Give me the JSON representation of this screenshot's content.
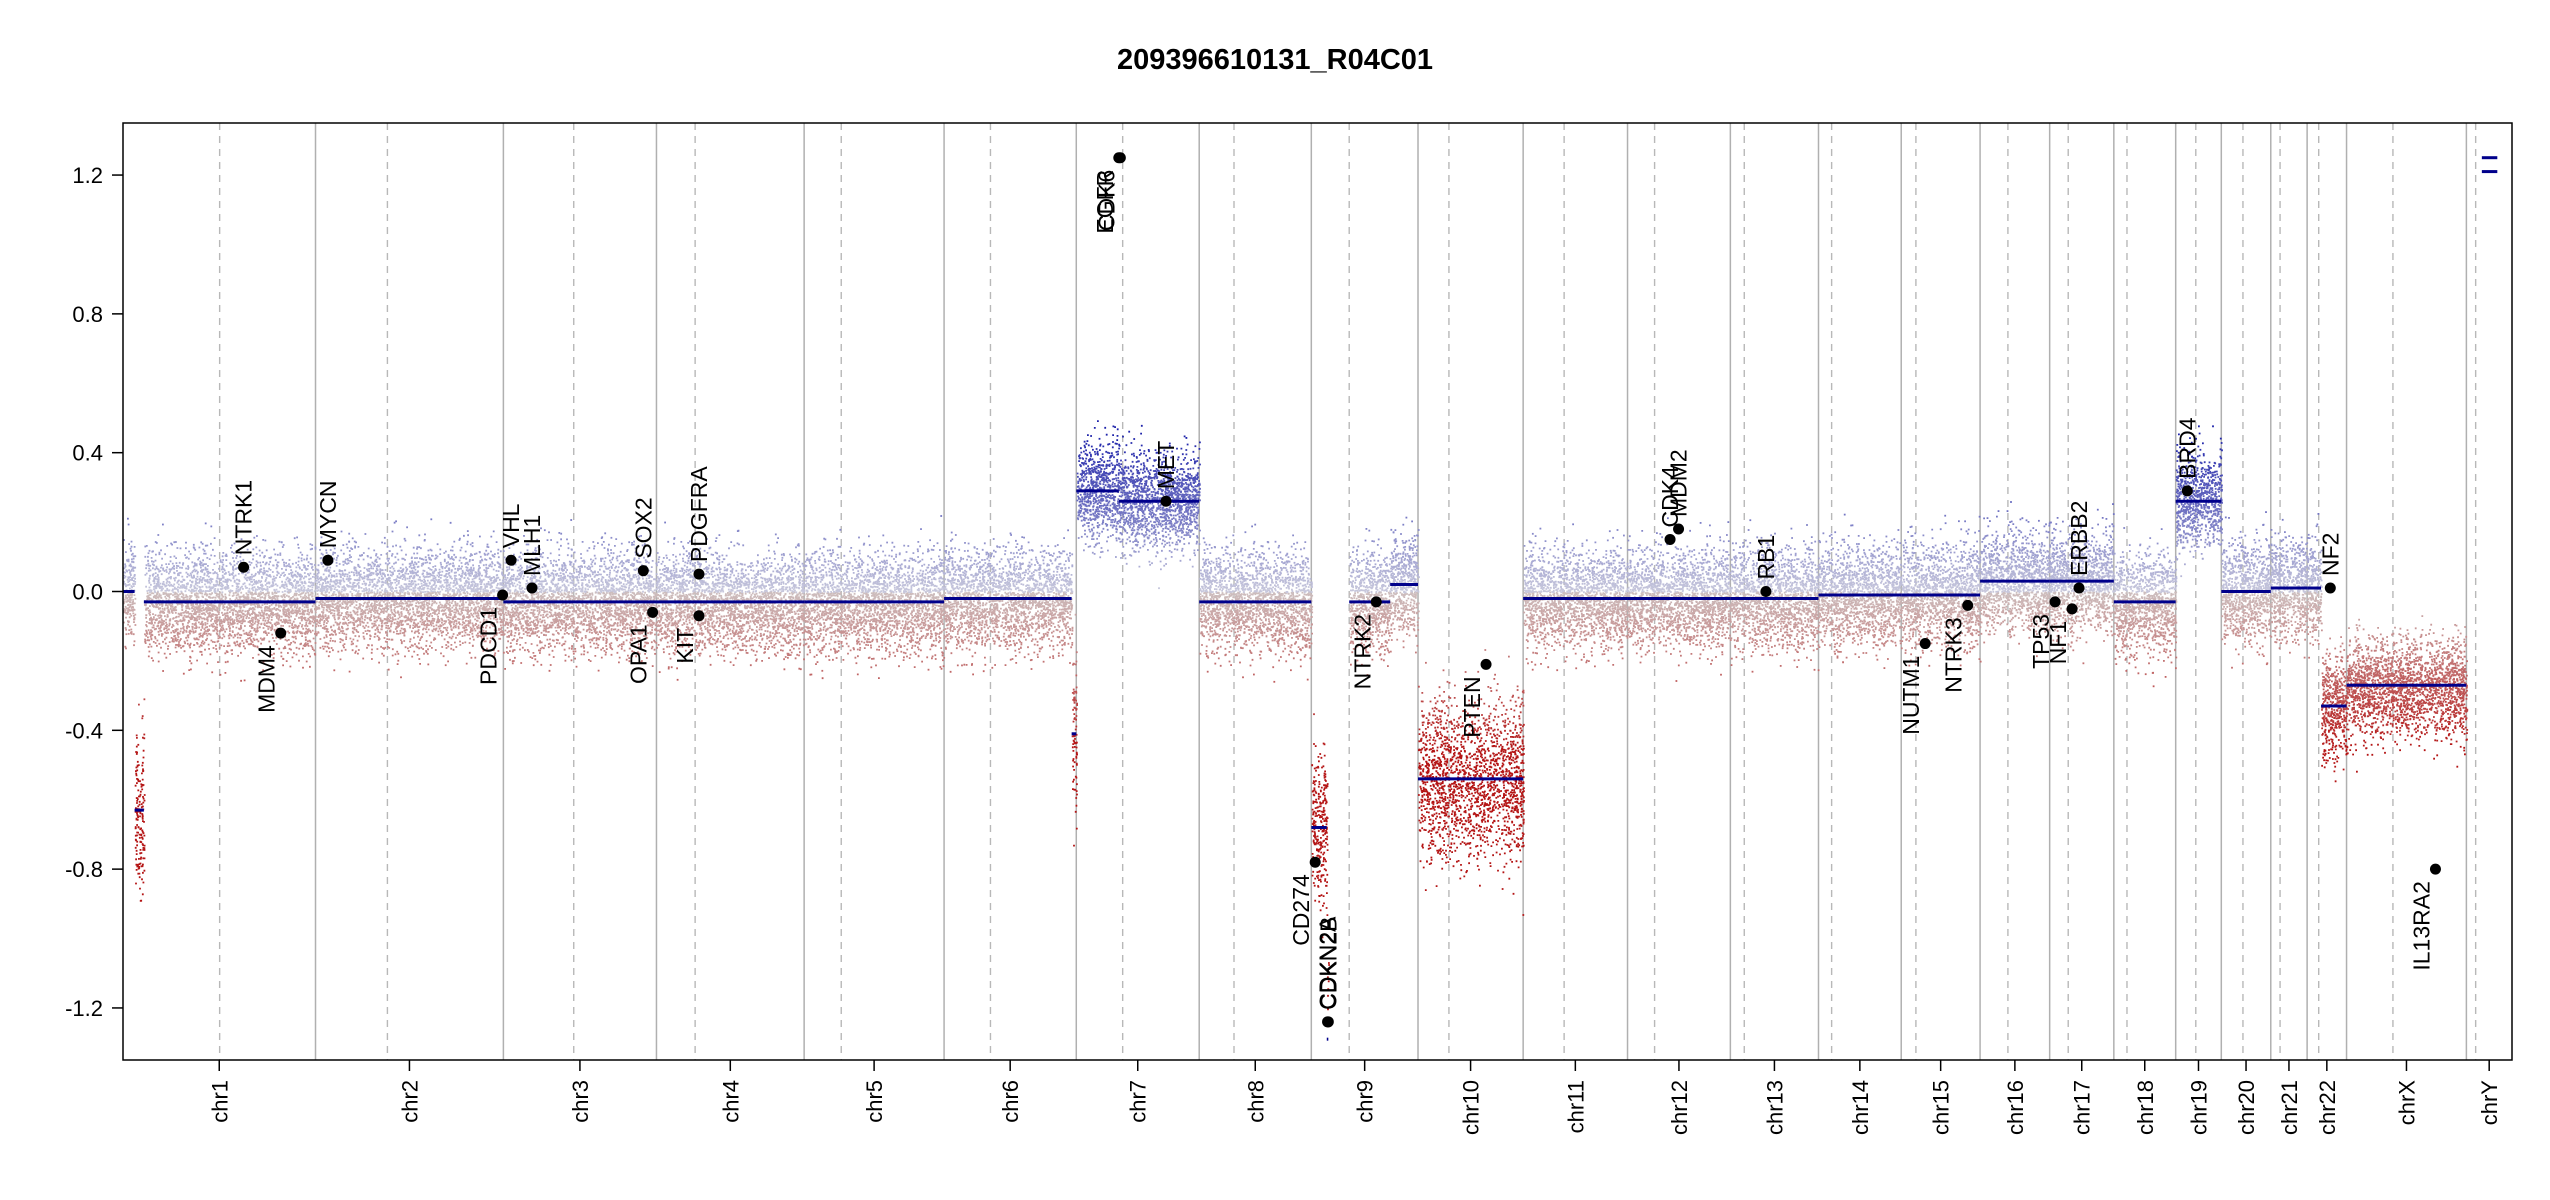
{
  "chart_data": {
    "type": "scatter",
    "title": "209396610131_R04C01",
    "xlabel": "",
    "ylabel": "",
    "ylim": [
      -1.35,
      1.35
    ],
    "y_ticks": [
      -1.2,
      -0.8,
      -0.4,
      0.0,
      0.4,
      0.8,
      1.2
    ],
    "y_tick_labels": [
      "-1.2",
      "-0.8",
      "-0.4",
      "0.0",
      "0.4",
      "0.8",
      "1.2"
    ],
    "grid": "chromosome boundaries (solid) and centromeres (dashed)",
    "colors": {
      "gain": "#1e22aa",
      "loss": "#b31b1b",
      "segment": "#00008b",
      "gene": "#000000"
    },
    "chromosomes": [
      {
        "name": "chr1",
        "label": "chr1",
        "len": 249,
        "cent": 125
      },
      {
        "name": "chr2",
        "label": "chr2",
        "len": 243,
        "cent": 93
      },
      {
        "name": "chr3",
        "label": "chr3",
        "len": 198,
        "cent": 91
      },
      {
        "name": "chr4",
        "label": "chr4",
        "len": 191,
        "cent": 50
      },
      {
        "name": "chr5",
        "label": "chr5",
        "len": 181,
        "cent": 48
      },
      {
        "name": "chr6",
        "label": "chr6",
        "len": 171,
        "cent": 60
      },
      {
        "name": "chr7",
        "label": "chr7",
        "len": 159,
        "cent": 60
      },
      {
        "name": "chr8",
        "label": "chr8",
        "len": 145,
        "cent": 45
      },
      {
        "name": "chr9",
        "label": "chr9",
        "len": 138,
        "cent": 49
      },
      {
        "name": "chr10",
        "label": "chr10",
        "len": 136,
        "cent": 40
      },
      {
        "name": "chr11",
        "label": "chr11",
        "len": 135,
        "cent": 53
      },
      {
        "name": "chr12",
        "label": "chr12",
        "len": 133,
        "cent": 35
      },
      {
        "name": "chr13",
        "label": "chr13",
        "len": 114,
        "cent": 18
      },
      {
        "name": "chr14",
        "label": "chr14",
        "len": 107,
        "cent": 17
      },
      {
        "name": "chr15",
        "label": "chr15",
        "len": 102,
        "cent": 19
      },
      {
        "name": "chr16",
        "label": "chr16",
        "len": 90,
        "cent": 36
      },
      {
        "name": "chr17",
        "label": "chr17",
        "len": 83,
        "cent": 24
      },
      {
        "name": "chr18",
        "label": "chr18",
        "len": 80,
        "cent": 17
      },
      {
        "name": "chr19",
        "label": "chr19",
        "len": 59,
        "cent": 26
      },
      {
        "name": "chr20",
        "label": "chr20",
        "len": 64,
        "cent": 28
      },
      {
        "name": "chr21",
        "label": "chr21",
        "len": 47,
        "cent": 12
      },
      {
        "name": "chr22",
        "label": "chr22",
        "len": 51,
        "cent": 15
      },
      {
        "name": "chrX",
        "label": "chrX",
        "len": 155,
        "cent": 60
      },
      {
        "name": "chrY",
        "label": "chrY",
        "len": 59,
        "cent": 12
      }
    ],
    "segments": [
      {
        "chr": "chr1",
        "start": 0,
        "end": 15,
        "value": 0.0
      },
      {
        "chr": "chr1",
        "start": 15,
        "end": 27,
        "value": -0.63
      },
      {
        "chr": "chr1",
        "start": 27,
        "end": 249,
        "value": -0.03
      },
      {
        "chr": "chr2",
        "start": 0,
        "end": 243,
        "value": -0.02
      },
      {
        "chr": "chr3",
        "start": 0,
        "end": 198,
        "value": -0.03
      },
      {
        "chr": "chr4",
        "start": 0,
        "end": 191,
        "value": -0.03
      },
      {
        "chr": "chr5",
        "start": 0,
        "end": 181,
        "value": -0.03
      },
      {
        "chr": "chr6",
        "start": 0,
        "end": 165,
        "value": -0.02
      },
      {
        "chr": "chr6",
        "start": 165,
        "end": 171,
        "value": -0.41
      },
      {
        "chr": "chr7",
        "start": 0,
        "end": 55,
        "value": 0.29
      },
      {
        "chr": "chr7",
        "start": 55,
        "end": 159,
        "value": 0.26
      },
      {
        "chr": "chr8",
        "start": 0,
        "end": 145,
        "value": -0.03
      },
      {
        "chr": "chr9",
        "start": 0,
        "end": 20,
        "value": -0.68
      },
      {
        "chr": "chr9",
        "start": 20,
        "end": 22,
        "value": -1.29
      },
      {
        "chr": "chr9",
        "start": 49,
        "end": 102,
        "value": -0.03
      },
      {
        "chr": "chr9",
        "start": 102,
        "end": 138,
        "value": 0.02
      },
      {
        "chr": "chr10",
        "start": 0,
        "end": 136,
        "value": -0.54
      },
      {
        "chr": "chr11",
        "start": 0,
        "end": 135,
        "value": -0.02
      },
      {
        "chr": "chr12",
        "start": 0,
        "end": 133,
        "value": -0.02
      },
      {
        "chr": "chr13",
        "start": 0,
        "end": 114,
        "value": -0.02
      },
      {
        "chr": "chr14",
        "start": 0,
        "end": 107,
        "value": -0.01
      },
      {
        "chr": "chr15",
        "start": 0,
        "end": 102,
        "value": -0.01
      },
      {
        "chr": "chr16",
        "start": 0,
        "end": 90,
        "value": 0.03
      },
      {
        "chr": "chr17",
        "start": 0,
        "end": 83,
        "value": 0.03
      },
      {
        "chr": "chr18",
        "start": 0,
        "end": 80,
        "value": -0.03
      },
      {
        "chr": "chr19",
        "start": 0,
        "end": 59,
        "value": 0.26
      },
      {
        "chr": "chr20",
        "start": 0,
        "end": 64,
        "value": 0.0
      },
      {
        "chr": "chr21",
        "start": 0,
        "end": 47,
        "value": 0.01
      },
      {
        "chr": "chr22",
        "start": 0,
        "end": 18,
        "value": 0.01
      },
      {
        "chr": "chr22",
        "start": 18,
        "end": 51,
        "value": -0.33
      },
      {
        "chr": "chrX",
        "start": 0,
        "end": 155,
        "value": -0.27
      },
      {
        "chr": "chrY",
        "start": 20,
        "end": 40,
        "value": 1.25
      },
      {
        "chr": "chrY",
        "start": 20,
        "end": 40,
        "value": 1.21
      }
    ],
    "genes": [
      {
        "name": "NTRK1",
        "chr": "chr1",
        "pos": 156,
        "value": 0.07,
        "label_side": "above"
      },
      {
        "name": "MDM4",
        "chr": "chr1",
        "pos": 204,
        "value": -0.12,
        "label_side": "below"
      },
      {
        "name": "MYCN",
        "chr": "chr2",
        "pos": 16,
        "value": 0.09,
        "label_side": "above"
      },
      {
        "name": "PDCD1",
        "chr": "chr2",
        "pos": 242,
        "value": -0.01,
        "label_side": "below"
      },
      {
        "name": "VHL",
        "chr": "chr3",
        "pos": 10,
        "value": 0.09,
        "label_side": "above"
      },
      {
        "name": "MLH1",
        "chr": "chr3",
        "pos": 37,
        "value": 0.01,
        "label_side": "above"
      },
      {
        "name": "SOX2",
        "chr": "chr3",
        "pos": 181,
        "value": 0.06,
        "label_side": "above"
      },
      {
        "name": "OPA1",
        "chr": "chr3",
        "pos": 193,
        "value": -0.06,
        "label_side": "below"
      },
      {
        "name": "PDGFRA",
        "chr": "chr4",
        "pos": 55,
        "value": 0.05,
        "label_side": "above"
      },
      {
        "name": "KIT",
        "chr": "chr4",
        "pos": 55,
        "value": -0.07,
        "label_side": "below"
      },
      {
        "name": "EGFR",
        "chr": "chr7",
        "pos": 55,
        "value": 1.25,
        "label_side": "below"
      },
      {
        "name": "CDK6",
        "chr": "chr7",
        "pos": 57,
        "value": 1.25,
        "label_side": "below"
      },
      {
        "name": "MET",
        "chr": "chr7",
        "pos": 116,
        "value": 0.26,
        "label_side": "above"
      },
      {
        "name": "CD274",
        "chr": "chr9",
        "pos": 5,
        "value": -0.78,
        "label_side": "below"
      },
      {
        "name": "CDKN2A",
        "chr": "chr9",
        "pos": 21,
        "value": -1.24,
        "label_side": "above"
      },
      {
        "name": "CDKN2B",
        "chr": "chr9",
        "pos": 22,
        "value": -1.24,
        "label_side": "above"
      },
      {
        "name": "NTRK2",
        "chr": "chr9",
        "pos": 84,
        "value": -0.03,
        "label_side": "below"
      },
      {
        "name": "PTEN",
        "chr": "chr10",
        "pos": 88,
        "value": -0.21,
        "label_side": "below"
      },
      {
        "name": "CDK4",
        "chr": "chr12",
        "pos": 55,
        "value": 0.15,
        "label_side": "above"
      },
      {
        "name": "MDM2",
        "chr": "chr12",
        "pos": 66,
        "value": 0.18,
        "label_side": "above"
      },
      {
        "name": "RB1",
        "chr": "chr13",
        "pos": 46,
        "value": 0.0,
        "label_side": "above"
      },
      {
        "name": "NUTM1",
        "chr": "chr15",
        "pos": 31,
        "value": -0.15,
        "label_side": "below"
      },
      {
        "name": "NTRK3",
        "chr": "chr15",
        "pos": 86,
        "value": -0.04,
        "label_side": "below"
      },
      {
        "name": "TP53",
        "chr": "chr17",
        "pos": 7,
        "value": -0.03,
        "label_side": "below"
      },
      {
        "name": "NF1",
        "chr": "chr17",
        "pos": 29,
        "value": -0.05,
        "label_side": "below"
      },
      {
        "name": "ERBB2",
        "chr": "chr17",
        "pos": 38,
        "value": 0.01,
        "label_side": "above"
      },
      {
        "name": "BRD4",
        "chr": "chr19",
        "pos": 15,
        "value": 0.29,
        "label_side": "above"
      },
      {
        "name": "NF2",
        "chr": "chr22",
        "pos": 30,
        "value": 0.01,
        "label_side": "above"
      },
      {
        "name": "IL13RA2",
        "chr": "chrX",
        "pos": 115,
        "value": -0.8,
        "label_side": "below"
      }
    ]
  }
}
